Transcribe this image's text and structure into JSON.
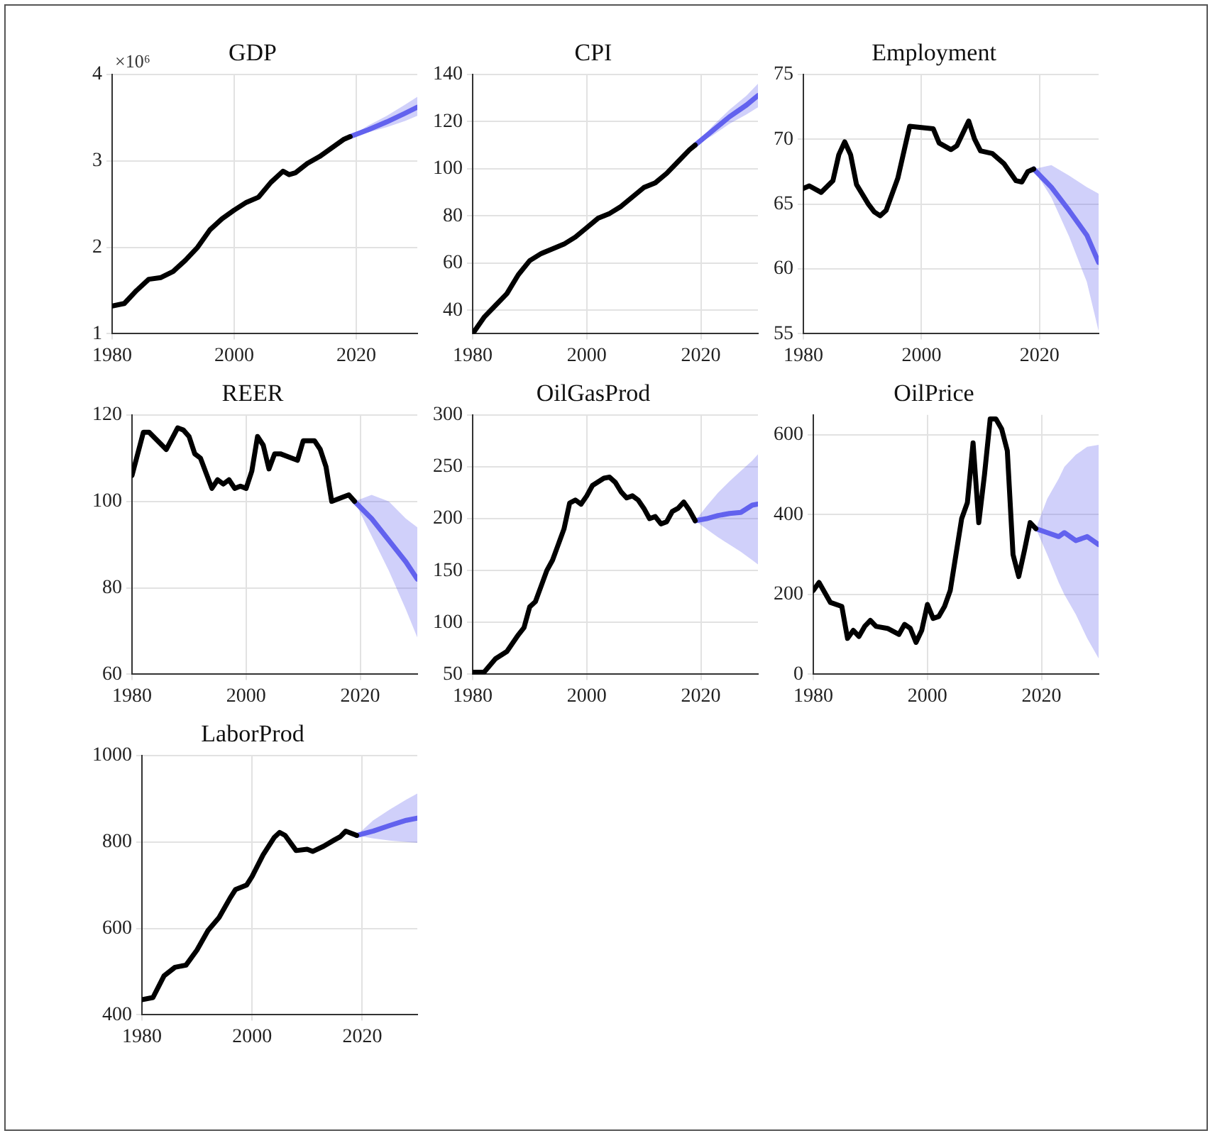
{
  "chart_data": [
    {
      "type": "line",
      "title": "GDP",
      "annotations": [
        "×10⁶"
      ],
      "xlim": [
        1980,
        2030
      ],
      "xticks": [
        1980,
        2000,
        2020
      ],
      "ylim": [
        1,
        4
      ],
      "yticks": [
        1,
        2,
        3,
        4
      ],
      "grid": true,
      "series": [
        {
          "color": "#000000",
          "x": [
            1980,
            1982,
            1984,
            1986,
            1988,
            1990,
            1992,
            1994,
            1996,
            1998,
            2000,
            2002,
            2004,
            2006,
            2008,
            2009,
            2010,
            2012,
            2014,
            2016,
            2018,
            2019
          ],
          "values": [
            1.32,
            1.35,
            1.5,
            1.63,
            1.65,
            1.72,
            1.85,
            2.0,
            2.2,
            2.33,
            2.43,
            2.52,
            2.58,
            2.75,
            2.88,
            2.84,
            2.86,
            2.97,
            3.05,
            3.15,
            3.25,
            3.28
          ]
        },
        {
          "color": "#6262ee",
          "x": [
            2019,
            2022,
            2025,
            2028,
            2030
          ],
          "values": [
            3.28,
            3.36,
            3.45,
            3.55,
            3.62
          ],
          "lower": [
            3.28,
            3.33,
            3.39,
            3.46,
            3.52
          ],
          "upper": [
            3.28,
            3.41,
            3.52,
            3.65,
            3.74
          ]
        }
      ]
    },
    {
      "type": "line",
      "title": "CPI",
      "xlim": [
        1980,
        2030
      ],
      "xticks": [
        1980,
        2000,
        2020
      ],
      "ylim": [
        30,
        140
      ],
      "yticks": [
        40,
        60,
        80,
        100,
        120,
        140
      ],
      "grid": true,
      "series": [
        {
          "color": "#000000",
          "x": [
            1980,
            1982,
            1984,
            1986,
            1988,
            1990,
            1992,
            1994,
            1996,
            1998,
            2000,
            2002,
            2004,
            2006,
            2008,
            2010,
            2012,
            2014,
            2016,
            2018,
            2019
          ],
          "values": [
            30,
            37,
            42,
            47,
            55,
            61,
            64,
            66,
            68,
            71,
            75,
            79,
            81,
            84,
            88,
            92,
            94,
            98,
            103,
            108,
            110
          ]
        },
        {
          "color": "#6262ee",
          "x": [
            2019,
            2022,
            2025,
            2028,
            2030
          ],
          "values": [
            110,
            116,
            122,
            127,
            131
          ],
          "lower": [
            110,
            114,
            119,
            123,
            126
          ],
          "upper": [
            110,
            118,
            125,
            131,
            136
          ]
        }
      ]
    },
    {
      "type": "line",
      "title": "Employment",
      "xlim": [
        1980,
        2030
      ],
      "xticks": [
        1980,
        2000,
        2020
      ],
      "ylim": [
        55,
        75
      ],
      "yticks": [
        55,
        60,
        65,
        70,
        75
      ],
      "grid": true,
      "series": [
        {
          "color": "#000000",
          "x": [
            1980,
            1981,
            1983,
            1985,
            1986,
            1987,
            1988,
            1989,
            1991,
            1992,
            1993,
            1994,
            1996,
            1998,
            2000,
            2002,
            2003,
            2005,
            2006,
            2008,
            2009,
            2010,
            2012,
            2014,
            2016,
            2017,
            2018,
            2019
          ],
          "values": [
            66.2,
            66.4,
            65.9,
            66.8,
            68.8,
            69.8,
            68.8,
            66.5,
            65,
            64.4,
            64.1,
            64.5,
            67,
            71,
            70.9,
            70.8,
            69.7,
            69.2,
            69.5,
            71.4,
            70,
            69.1,
            68.9,
            68.1,
            66.8,
            66.7,
            67.5,
            67.7
          ]
        },
        {
          "color": "#6262ee",
          "x": [
            2019,
            2022,
            2025,
            2028,
            2030
          ],
          "values": [
            67.7,
            66.3,
            64.5,
            62.6,
            60.5
          ],
          "lower": [
            67.7,
            65.5,
            62.5,
            59,
            55.2
          ],
          "upper": [
            67.7,
            68,
            67.2,
            66.3,
            65.8
          ]
        }
      ]
    },
    {
      "type": "line",
      "title": "REER",
      "xlim": [
        1980,
        2030
      ],
      "xticks": [
        1980,
        2000,
        2020
      ],
      "ylim": [
        60,
        120
      ],
      "yticks": [
        60,
        80,
        100,
        120
      ],
      "grid": true,
      "series": [
        {
          "color": "#000000",
          "x": [
            1980,
            1982,
            1983,
            1986,
            1988,
            1989,
            1990,
            1991,
            1992,
            1994,
            1995,
            1996,
            1997,
            1998,
            1999,
            2000,
            2001,
            2002,
            2003,
            2004,
            2005,
            2006,
            2008,
            2009,
            2010,
            2012,
            2013,
            2014,
            2015,
            2017,
            2018,
            2019
          ],
          "values": [
            106,
            116,
            116,
            112,
            117,
            116.5,
            115,
            111,
            110,
            103,
            105,
            104,
            105,
            103,
            103.5,
            103,
            107,
            115,
            113,
            107.5,
            111,
            111,
            110,
            109.5,
            114,
            114,
            112,
            108,
            100,
            101,
            101.5,
            100
          ]
        },
        {
          "color": "#6262ee",
          "x": [
            2019,
            2022,
            2025,
            2028,
            2030
          ],
          "values": [
            100,
            96,
            91,
            86,
            82
          ],
          "lower": [
            100,
            92,
            84,
            75,
            68.5
          ],
          "upper": [
            100,
            101.5,
            100,
            96,
            94
          ]
        }
      ]
    },
    {
      "type": "line",
      "title": "OilGasProd",
      "xlim": [
        1980,
        2030
      ],
      "xticks": [
        1980,
        2000,
        2020
      ],
      "ylim": [
        50,
        300
      ],
      "yticks": [
        50,
        100,
        150,
        200,
        250,
        300
      ],
      "grid": true,
      "series": [
        {
          "color": "#000000",
          "x": [
            1980,
            1982,
            1984,
            1986,
            1988,
            1989,
            1990,
            1991,
            1992,
            1993,
            1994,
            1995,
            1996,
            1997,
            1998,
            1999,
            2000,
            2001,
            2003,
            2004,
            2005,
            2006,
            2007,
            2008,
            2009,
            2010,
            2011,
            2012,
            2013,
            2014,
            2015,
            2016,
            2017,
            2018,
            2019
          ],
          "values": [
            52,
            52,
            65,
            72,
            88,
            95,
            115,
            120,
            135,
            150,
            160,
            175,
            190,
            215,
            218,
            214,
            222,
            232,
            239,
            240,
            235,
            226,
            220,
            222,
            218,
            210,
            200,
            202,
            195,
            197,
            207,
            210,
            216,
            208,
            198
          ]
        },
        {
          "color": "#6262ee",
          "x": [
            2019,
            2021,
            2023,
            2025,
            2027,
            2029,
            2030
          ],
          "values": [
            198,
            200,
            203,
            205,
            206,
            213,
            214
          ],
          "lower": [
            198,
            190,
            182,
            175,
            168,
            160,
            156
          ],
          "upper": [
            198,
            212,
            225,
            236,
            246,
            256,
            262
          ]
        }
      ]
    },
    {
      "type": "line",
      "title": "OilPrice",
      "xlim": [
        1980,
        2030
      ],
      "xticks": [
        1980,
        2000,
        2020
      ],
      "ylim": [
        0,
        650
      ],
      "yticks": [
        0,
        200,
        400,
        600
      ],
      "grid": true,
      "series": [
        {
          "color": "#000000",
          "x": [
            1980,
            1981,
            1983,
            1985,
            1986,
            1987,
            1988,
            1989,
            1990,
            1991,
            1993,
            1995,
            1996,
            1997,
            1998,
            1999,
            2000,
            2001,
            2002,
            2003,
            2004,
            2005,
            2006,
            2007,
            2008,
            2009,
            2010,
            2011,
            2012,
            2013,
            2014,
            2015,
            2016,
            2017,
            2018,
            2019
          ],
          "values": [
            210,
            230,
            180,
            170,
            90,
            110,
            95,
            120,
            135,
            120,
            115,
            100,
            125,
            115,
            80,
            110,
            175,
            140,
            145,
            170,
            210,
            300,
            390,
            430,
            580,
            380,
            500,
            640,
            640,
            615,
            560,
            300,
            245,
            310,
            380,
            365
          ]
        },
        {
          "color": "#6262ee",
          "x": [
            2019,
            2021,
            2023,
            2024,
            2026,
            2028,
            2030
          ],
          "values": [
            365,
            355,
            345,
            355,
            335,
            345,
            325
          ],
          "lower": [
            365,
            300,
            230,
            200,
            150,
            90,
            40
          ],
          "upper": [
            365,
            440,
            490,
            520,
            550,
            570,
            575
          ]
        }
      ]
    },
    {
      "type": "line",
      "title": "LaborProd",
      "xlim": [
        1980,
        2030
      ],
      "xticks": [
        1980,
        2000,
        2020
      ],
      "ylim": [
        400,
        1000
      ],
      "yticks": [
        400,
        600,
        800,
        1000
      ],
      "grid": true,
      "series": [
        {
          "color": "#000000",
          "x": [
            1980,
            1982,
            1984,
            1986,
            1988,
            1990,
            1992,
            1994,
            1996,
            1997,
            1999,
            2000,
            2002,
            2004,
            2005,
            2006,
            2008,
            2010,
            2011,
            2013,
            2015,
            2016,
            2017,
            2018,
            2019
          ],
          "values": [
            435,
            440,
            490,
            510,
            515,
            550,
            595,
            625,
            670,
            690,
            700,
            720,
            770,
            810,
            822,
            815,
            780,
            783,
            778,
            790,
            805,
            812,
            825,
            820,
            815
          ]
        },
        {
          "color": "#6262ee",
          "x": [
            2019,
            2022,
            2025,
            2028,
            2030
          ],
          "values": [
            815,
            825,
            838,
            850,
            855
          ],
          "lower": [
            815,
            808,
            803,
            800,
            798
          ],
          "upper": [
            815,
            850,
            875,
            898,
            912
          ]
        }
      ]
    }
  ]
}
